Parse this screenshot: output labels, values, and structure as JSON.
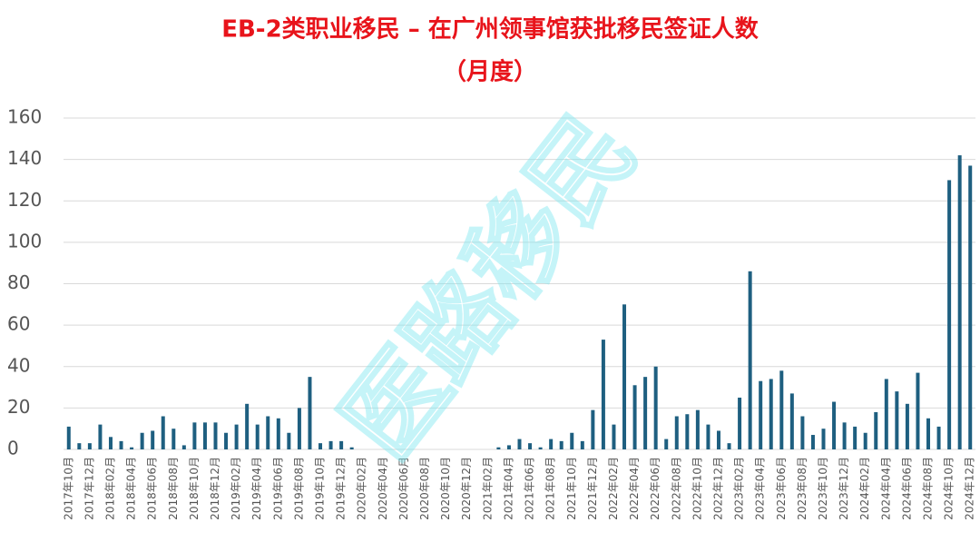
{
  "chart_data": {
    "type": "bar",
    "title": "EB-2类职业移民 – 在广州领事馆获批移民签证人数",
    "subtitle": "（月度）",
    "watermark": "医路移民",
    "categories": [
      "2017年10月",
      null,
      "2017年12月",
      null,
      "2018年02月",
      null,
      "2018年04月",
      null,
      "2018年06月",
      null,
      "2018年08月",
      null,
      "2018年10月",
      null,
      "2018年12月",
      null,
      "2019年02月",
      null,
      "2019年04月",
      null,
      "2019年06月",
      null,
      "2019年08月",
      null,
      "2019年10月",
      null,
      "2019年12月",
      null,
      "2020年02月",
      null,
      "2020年04月",
      null,
      "2020年06月",
      null,
      "2020年08月",
      null,
      "2020年10月",
      null,
      "2020年12月",
      null,
      "2021年02月",
      null,
      "2021年04月",
      null,
      "2021年06月",
      null,
      "2021年08月",
      null,
      "2021年10月",
      null,
      "2021年12月",
      null,
      "2022年02月",
      null,
      "2022年04月",
      null,
      "2022年06月",
      null,
      "2022年08月",
      null,
      "2022年10月",
      null,
      "2022年12月",
      null,
      "2023年02月",
      null,
      "2023年04月",
      null,
      "2023年06月",
      null,
      "2023年08月",
      null,
      "2023年10月",
      null,
      "2023年12月",
      null,
      "2024年02月",
      null,
      "2024年04月",
      null,
      "2024年06月",
      null,
      "2024年08月",
      null,
      "2024年10月",
      null,
      "2024年12月"
    ],
    "values": [
      11,
      3,
      3,
      12,
      6,
      4,
      1,
      8,
      9,
      16,
      10,
      2,
      13,
      13,
      13,
      8,
      12,
      22,
      12,
      16,
      15,
      8,
      20,
      35,
      3,
      4,
      4,
      1,
      0,
      0,
      0,
      0,
      0,
      0,
      0,
      0,
      0,
      0,
      0,
      0,
      0,
      1,
      2,
      5,
      3,
      1,
      5,
      4,
      8,
      4,
      19,
      53,
      12,
      70,
      31,
      35,
      40,
      5,
      16,
      17,
      19,
      12,
      9,
      3,
      25,
      86,
      33,
      34,
      38,
      27,
      16,
      7,
      10,
      23,
      13,
      11,
      8,
      18,
      34,
      28,
      22,
      37,
      15,
      11,
      130,
      142,
      137
    ],
    "color": "#1e5f80",
    "ylim": [
      0,
      160
    ],
    "yticks": [
      0,
      20,
      40,
      60,
      80,
      100,
      120,
      140,
      160
    ],
    "grid": true
  }
}
